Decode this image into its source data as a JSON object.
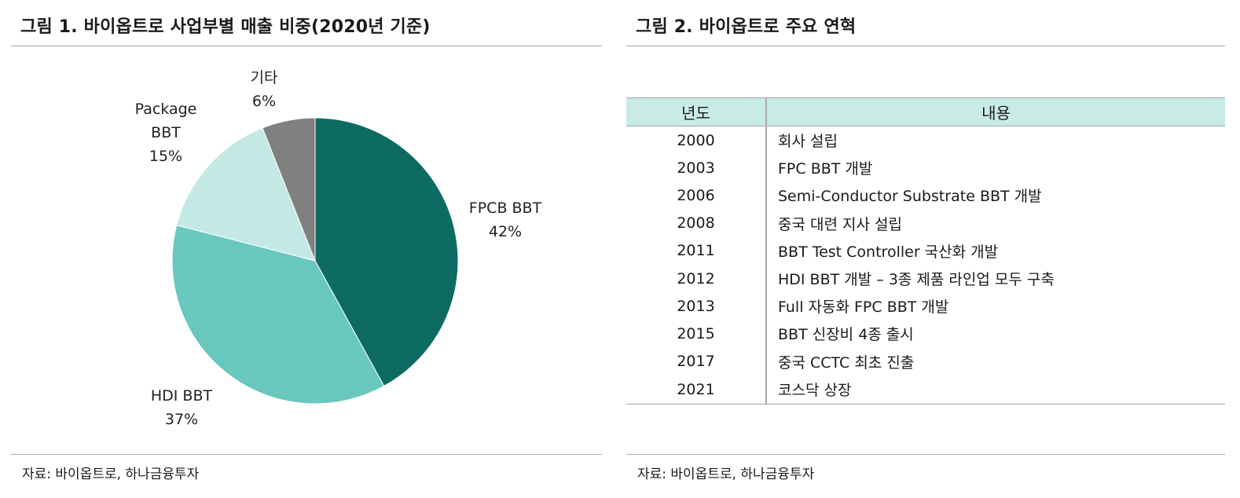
{
  "figure1": {
    "title": "그림 1. 바이옵트로 사업부별 매출 비중(2020년 기준)",
    "source": "자료: 바이옵트로, 하나금융투자"
  },
  "figure2": {
    "title": "그림 2. 바이옵트로 주요 연혁",
    "source": "자료: 바이옵트로, 하나금융투자",
    "table": {
      "headers": [
        "년도",
        "내용"
      ],
      "rows": [
        {
          "year": "2000",
          "content": "회사 설립"
        },
        {
          "year": "2003",
          "content": "FPC BBT 개발"
        },
        {
          "year": "2006",
          "content": "Semi-Conductor Substrate BBT 개발"
        },
        {
          "year": "2008",
          "content": "중국 대련 지사 설립"
        },
        {
          "year": "2011",
          "content": "BBT Test Controller 국산화 개발"
        },
        {
          "year": "2012",
          "content": "HDI BBT 개발 – 3종 제품 라인업 모두 구축"
        },
        {
          "year": "2013",
          "content": "Full 자동화 FPC BBT 개발"
        },
        {
          "year": "2015",
          "content": "BBT 신장비 4종 출시"
        },
        {
          "year": "2017",
          "content": "중국 CCTC 최초 진출"
        },
        {
          "year": "2021",
          "content": "코스닥 상장"
        }
      ]
    }
  },
  "chart_data": {
    "type": "pie",
    "title": "그림 1. 바이옵트로 사업부별 매출 비중(2020년 기준)",
    "slices": [
      {
        "label": [
          "FPCB BBT"
        ],
        "value": 42,
        "value_label": "42%",
        "color": "#0e6b62"
      },
      {
        "label": [
          "HDI BBT"
        ],
        "value": 37,
        "value_label": "37%",
        "color": "#69c8bd"
      },
      {
        "label": [
          "Package",
          "BBT"
        ],
        "value": 15,
        "value_label": "15%",
        "color": "#c4e9e4"
      },
      {
        "label": [
          "기타"
        ],
        "value": 6,
        "value_label": "6%",
        "color": "#808080"
      }
    ],
    "start": "12 o'clock",
    "direction": "clockwise",
    "legend": "none"
  }
}
